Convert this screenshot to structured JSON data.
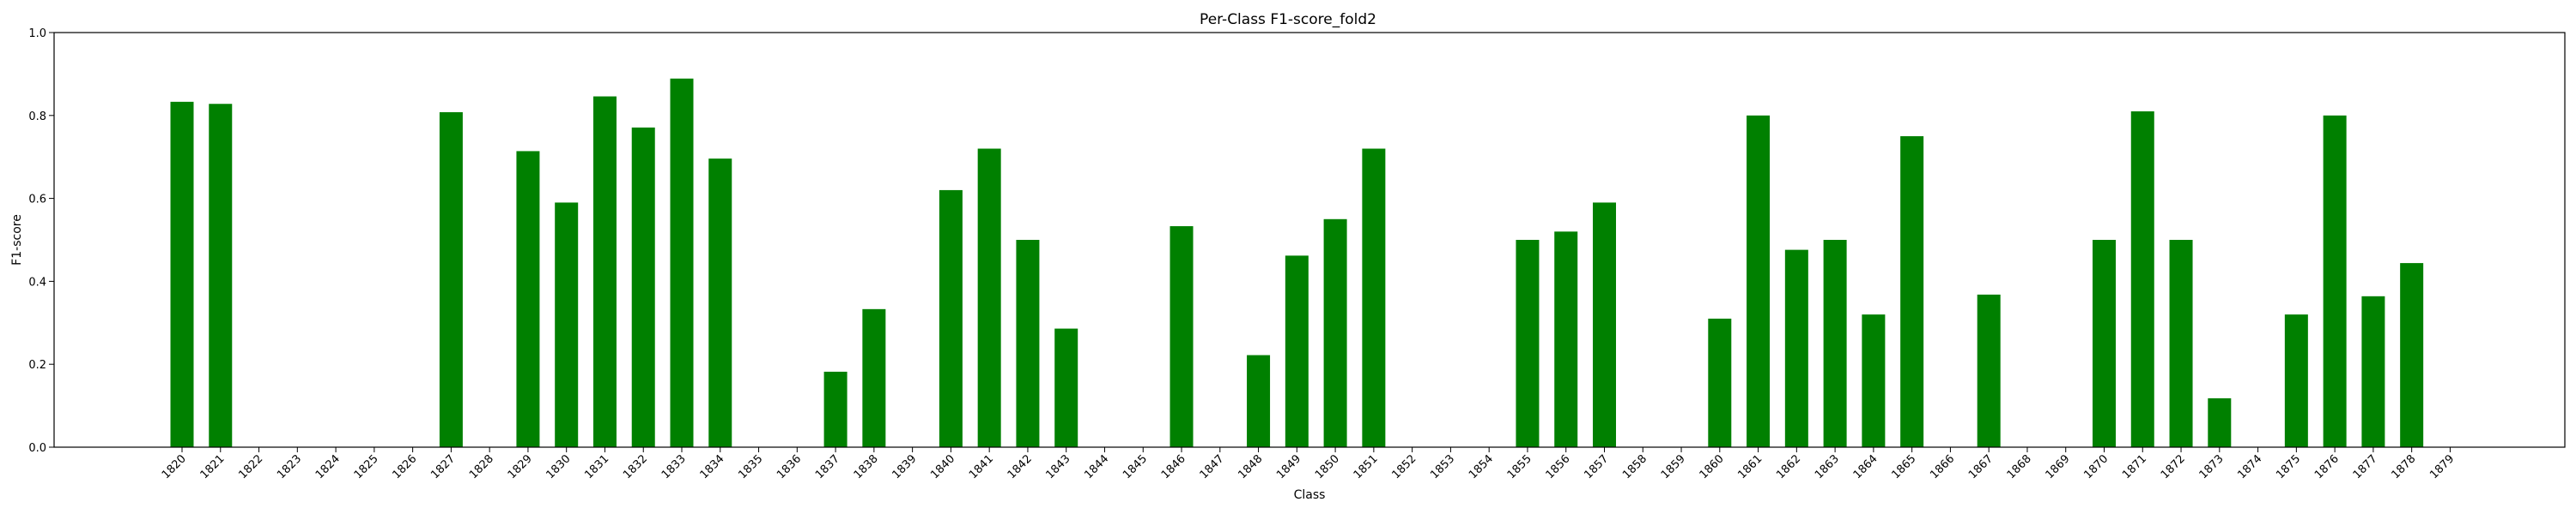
{
  "chart_data": {
    "type": "bar",
    "title": "Per-Class F1-score_fold2",
    "xlabel": "Class",
    "ylabel": "F1-score",
    "ylim": [
      0,
      1.0
    ],
    "yticks": [
      "0.0",
      "0.2",
      "0.4",
      "0.6",
      "0.8",
      "1.0"
    ],
    "bar_color": "#008000",
    "grid": false,
    "categories": [
      "1820",
      "1821",
      "1822",
      "1823",
      "1824",
      "1825",
      "1826",
      "1827",
      "1828",
      "1829",
      "1830",
      "1831",
      "1832",
      "1833",
      "1834",
      "1835",
      "1836",
      "1837",
      "1838",
      "1839",
      "1840",
      "1841",
      "1842",
      "1843",
      "1844",
      "1845",
      "1846",
      "1847",
      "1848",
      "1849",
      "1850",
      "1851",
      "1852",
      "1853",
      "1854",
      "1855",
      "1856",
      "1857",
      "1858",
      "1859",
      "1860",
      "1861",
      "1862",
      "1863",
      "1864",
      "1865",
      "1866",
      "1867",
      "1868",
      "1869",
      "1870",
      "1871",
      "1872",
      "1873",
      "1874",
      "1875",
      "1876",
      "1877",
      "1878",
      "1879"
    ],
    "values": [
      0.833,
      0.828,
      0,
      0,
      0,
      0,
      0,
      0.808,
      0,
      0.714,
      0.59,
      0.846,
      0.771,
      0.889,
      0.696,
      0,
      0,
      0.182,
      0.333,
      0,
      0.62,
      0.72,
      0.5,
      0.286,
      0,
      0,
      0.533,
      0,
      0.222,
      0.462,
      0.55,
      0.72,
      0,
      0,
      0,
      0.5,
      0.52,
      0.59,
      0,
      0,
      0.31,
      0.8,
      0.476,
      0.5,
      0.32,
      0.75,
      0,
      0.368,
      0,
      0,
      0.5,
      0.81,
      0.5,
      0.118,
      0,
      0.32,
      0.8,
      0.364,
      0.444,
      0
    ]
  }
}
